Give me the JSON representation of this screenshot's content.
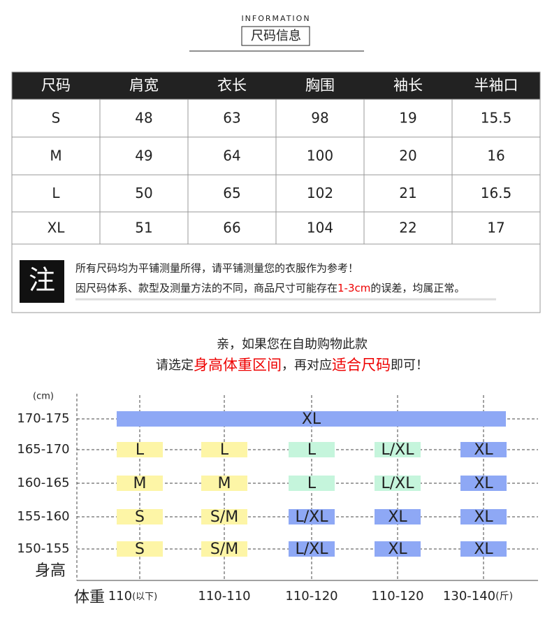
{
  "header": {
    "label": "INFORMATION",
    "title": "尺码信息"
  },
  "table": {
    "columns": [
      "尺码",
      "肩宽",
      "衣长",
      "胸围",
      "袖长",
      "半袖口"
    ],
    "rows": [
      [
        "S",
        "48",
        "63",
        "98",
        "19",
        "15.5"
      ],
      [
        "M",
        "49",
        "64",
        "100",
        "20",
        "16"
      ],
      [
        "L",
        "50",
        "65",
        "102",
        "21",
        "16.5"
      ],
      [
        "XL",
        "51",
        "66",
        "104",
        "22",
        "17"
      ]
    ]
  },
  "note": {
    "badge": "注",
    "line1": "所有尺码均为平铺测量所得，请平铺测量您的衣服作为参考！",
    "line2": [
      "因尺码体系、款型及测量方法的不同，商品尺寸可能存在",
      "1-3cm",
      "的误差，均属正常。"
    ]
  },
  "guide": {
    "line1": "亲，如果您在自助购物此款",
    "line2": [
      "请选定",
      "身高体重区间",
      "，再对应",
      "适合尺码",
      "即可！"
    ]
  },
  "size_chart": {
    "y_unit": "(cm)",
    "y_label": "身高",
    "x_label": "体重",
    "first_note": "(以下)",
    "last_note": "(斤)",
    "columns": [
      "110",
      "110-110",
      "110-120",
      "110-120",
      "130-140"
    ],
    "rows": [
      {
        "label": "170-175",
        "cells": [
          {
            "size": "XL",
            "color": "#8ea8f5"
          }
        ]
      },
      {
        "label": "165-170",
        "cells": [
          {
            "size": "L",
            "color": "#fdf5a6"
          },
          {
            "size": "L",
            "color": "#fdf5a6"
          },
          {
            "size": "L",
            "color": "#c5f5dc"
          },
          {
            "size": "L/XL",
            "color": "#c5f5dc"
          },
          {
            "size": "XL",
            "color": "#8ea8f5"
          }
        ]
      },
      {
        "label": "160-165",
        "cells": [
          {
            "size": "M",
            "color": "#fdf5a6"
          },
          {
            "size": "M",
            "color": "#fdf5a6"
          },
          {
            "size": "L",
            "color": "#c5f5dc"
          },
          {
            "size": "L/XL",
            "color": "#c5f5dc"
          },
          {
            "size": "XL",
            "color": "#8ea8f5"
          }
        ]
      },
      {
        "label": "155-160",
        "cells": [
          {
            "size": "S",
            "color": "#fdf5a6"
          },
          {
            "size": "S/M",
            "color": "#fdf5a6"
          },
          {
            "size": "L/XL",
            "color": "#8ea8f5"
          },
          {
            "size": "XL",
            "color": "#8ea8f5"
          },
          {
            "size": "XL",
            "color": "#8ea8f5"
          }
        ]
      },
      {
        "label": "150-155",
        "cells": [
          {
            "size": "S",
            "color": "#fdf5a6"
          },
          {
            "size": "S/M",
            "color": "#fdf5a6"
          },
          {
            "size": "L/XL",
            "color": "#8ea8f5"
          },
          {
            "size": "XL",
            "color": "#8ea8f5"
          },
          {
            "size": "XL",
            "color": "#8ea8f5"
          }
        ]
      }
    ]
  }
}
